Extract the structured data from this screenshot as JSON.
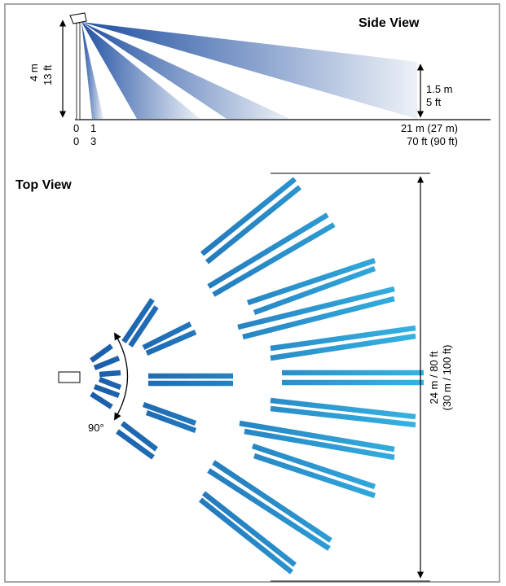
{
  "side_view": {
    "title": "Side View",
    "mount_height_m": "4 m",
    "mount_height_ft": "13 ft",
    "target_height_m": "1.5 m",
    "target_height_ft": "5 ft",
    "origin_m": "0",
    "origin_ft": "0",
    "near_m": "1",
    "near_ft": "3",
    "range_m": "21 m (27 m)",
    "range_ft": "70 ft (90 ft)"
  },
  "top_view": {
    "title": "Top View",
    "angle": "90°",
    "width_line1": "24 m / 80 ft",
    "width_line2": "(30 m / 100 ft)"
  },
  "colors": {
    "beam_dark": "#1a5aa8",
    "beam_light": "#35b4e2",
    "frame": "#a8a8a8"
  }
}
